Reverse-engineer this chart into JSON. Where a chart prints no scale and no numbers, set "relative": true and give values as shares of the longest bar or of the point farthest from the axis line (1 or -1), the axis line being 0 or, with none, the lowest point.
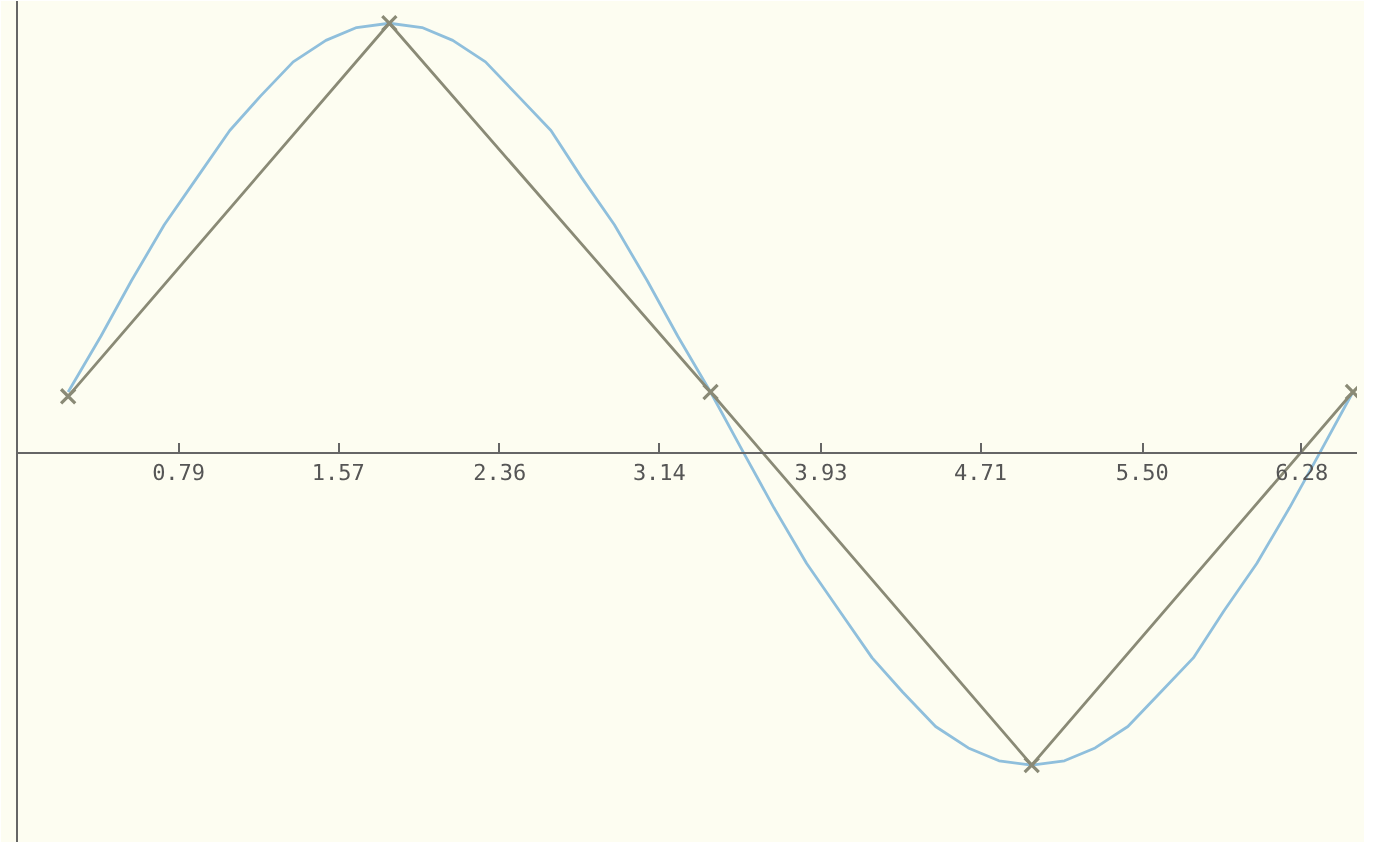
{
  "chart_data": {
    "type": "line",
    "relative": true,
    "xlim": [
      0,
      6.55
    ],
    "xticks": [
      0.79,
      1.57,
      2.36,
      3.14,
      3.93,
      4.71,
      {
        "value": 5.5,
        "label": "5.50"
      },
      6.28
    ],
    "line_style": "solid",
    "series": [
      {
        "color": "#8fbfdc",
        "x": [
          0.25,
          0.41,
          0.56,
          0.72,
          0.88,
          1.04,
          1.19,
          1.35,
          1.51,
          1.66,
          1.82,
          1.98,
          2.13,
          2.29,
          2.45,
          2.61,
          2.76,
          2.92,
          3.08,
          3.23,
          3.39,
          3.55,
          3.7,
          3.86,
          4.02,
          4.18,
          4.33,
          4.49,
          4.65,
          4.8,
          4.96,
          5.12,
          5.27,
          5.43,
          5.59,
          5.75,
          5.9,
          6.06,
          6.22,
          6.37,
          6.53
        ],
        "values": [
          0.14,
          0.27,
          0.4,
          0.53,
          0.64,
          0.75,
          0.83,
          0.91,
          0.96,
          0.99,
          1.0,
          0.99,
          0.96,
          0.91,
          0.83,
          0.75,
          0.64,
          0.53,
          0.4,
          0.27,
          0.14,
          0.0,
          -0.13,
          -0.26,
          -0.37,
          -0.48,
          -0.56,
          -0.64,
          -0.69,
          -0.72,
          -0.73,
          -0.72,
          -0.69,
          -0.64,
          -0.56,
          -0.48,
          -0.37,
          -0.26,
          -0.13,
          0.0,
          0.14
        ]
      },
      {
        "color": "#8a8a76",
        "marker": "cross",
        "x": [
          0.25,
          1.82,
          3.39,
          4.96,
          6.53
        ],
        "values": [
          0.13,
          1.0,
          0.14,
          -0.73,
          0.14
        ]
      }
    ]
  }
}
